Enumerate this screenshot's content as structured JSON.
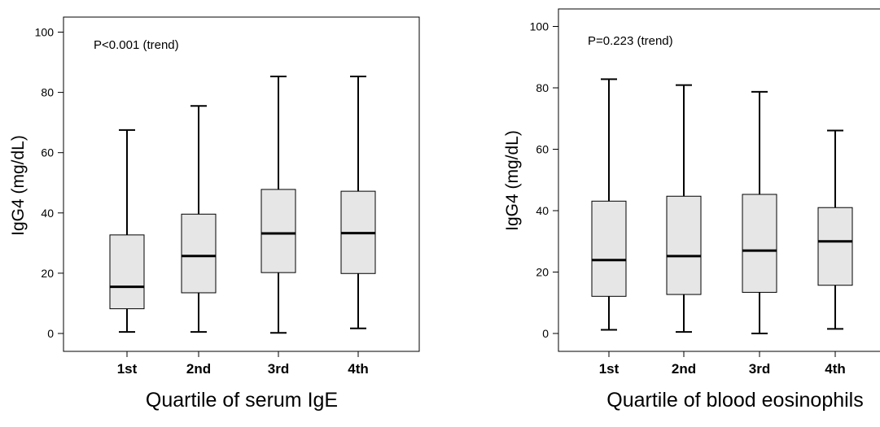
{
  "chart_data": [
    {
      "type": "box",
      "annotation": "P<0.001 (trend)",
      "xlabel": "Quartile of serum IgE",
      "ylabel": "IgG4 (mg/dL)",
      "ylim": [
        -5,
        105
      ],
      "yticks": [
        0,
        20,
        40,
        60,
        80,
        100
      ],
      "grid": false,
      "box_fill": "#e6e6e6",
      "categories": [
        "1st",
        "2nd",
        "3rd",
        "4th"
      ],
      "boxes": [
        {
          "min": 0.5,
          "q1": 8.2,
          "median": 15.5,
          "q3": 32.7,
          "max": 67.5
        },
        {
          "min": 0.5,
          "q1": 13.5,
          "median": 25.7,
          "q3": 39.6,
          "max": 75.5
        },
        {
          "min": 0.2,
          "q1": 20.2,
          "median": 33.2,
          "q3": 47.8,
          "max": 85.3
        },
        {
          "min": 1.7,
          "q1": 19.9,
          "median": 33.3,
          "q3": 47.2,
          "max": 85.3
        }
      ]
    },
    {
      "type": "box",
      "annotation": "P=0.223 (trend)",
      "xlabel": "Quartile of blood eosinophils",
      "ylabel": "IgG4 (mg/dL)",
      "ylim": [
        -5,
        105
      ],
      "yticks": [
        0,
        20,
        40,
        60,
        80,
        100
      ],
      "grid": false,
      "box_fill": "#e6e6e6",
      "categories": [
        "1st",
        "2nd",
        "3rd",
        "4th"
      ],
      "boxes": [
        {
          "min": 1.2,
          "q1": 12.1,
          "median": 23.9,
          "q3": 43.1,
          "max": 82.8
        },
        {
          "min": 0.5,
          "q1": 12.7,
          "median": 25.2,
          "q3": 44.7,
          "max": 80.9
        },
        {
          "min": 0.0,
          "q1": 13.4,
          "median": 27.0,
          "q3": 45.3,
          "max": 78.7
        },
        {
          "min": 1.5,
          "q1": 15.7,
          "median": 30.0,
          "q3": 41.0,
          "max": 66.1
        }
      ]
    }
  ]
}
